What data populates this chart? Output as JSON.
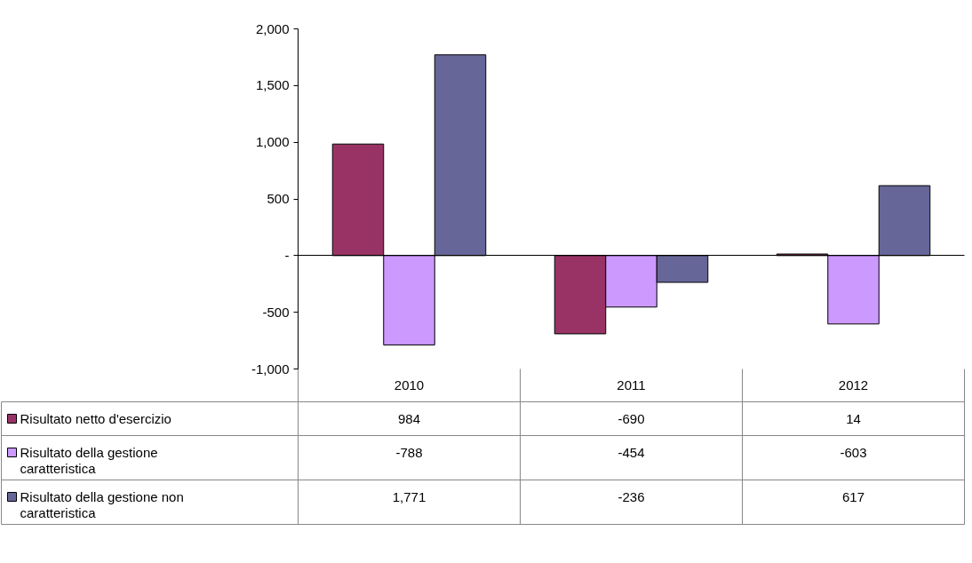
{
  "chart_data": {
    "type": "bar",
    "categories": [
      "2010",
      "2011",
      "2012"
    ],
    "series": [
      {
        "name": "Risultato netto d'esercizio",
        "color": "#993366",
        "values": [
          984,
          -690,
          14
        ],
        "value_labels": [
          "984",
          "-690",
          "14"
        ]
      },
      {
        "name": "Risultato della gestione caratteristica",
        "color": "#cc99ff",
        "values": [
          -788,
          -454,
          -603
        ],
        "value_labels": [
          "-788",
          "-454",
          "-603"
        ]
      },
      {
        "name": "Risultato della gestione non caratteristica",
        "color": "#666699",
        "values": [
          1771,
          -236,
          617
        ],
        "value_labels": [
          "1,771",
          "-236",
          "617"
        ]
      }
    ],
    "ylim": [
      -1000,
      2000
    ],
    "yticks": [
      {
        "value": -1000,
        "label": "-1,000"
      },
      {
        "value": -500,
        "label": "-500"
      },
      {
        "value": 0,
        "label": "-"
      },
      {
        "value": 500,
        "label": "500"
      },
      {
        "value": 1000,
        "label": "1,000"
      },
      {
        "value": 1500,
        "label": "1,500"
      },
      {
        "value": 2000,
        "label": "2,000"
      }
    ],
    "legend": "bottom"
  }
}
